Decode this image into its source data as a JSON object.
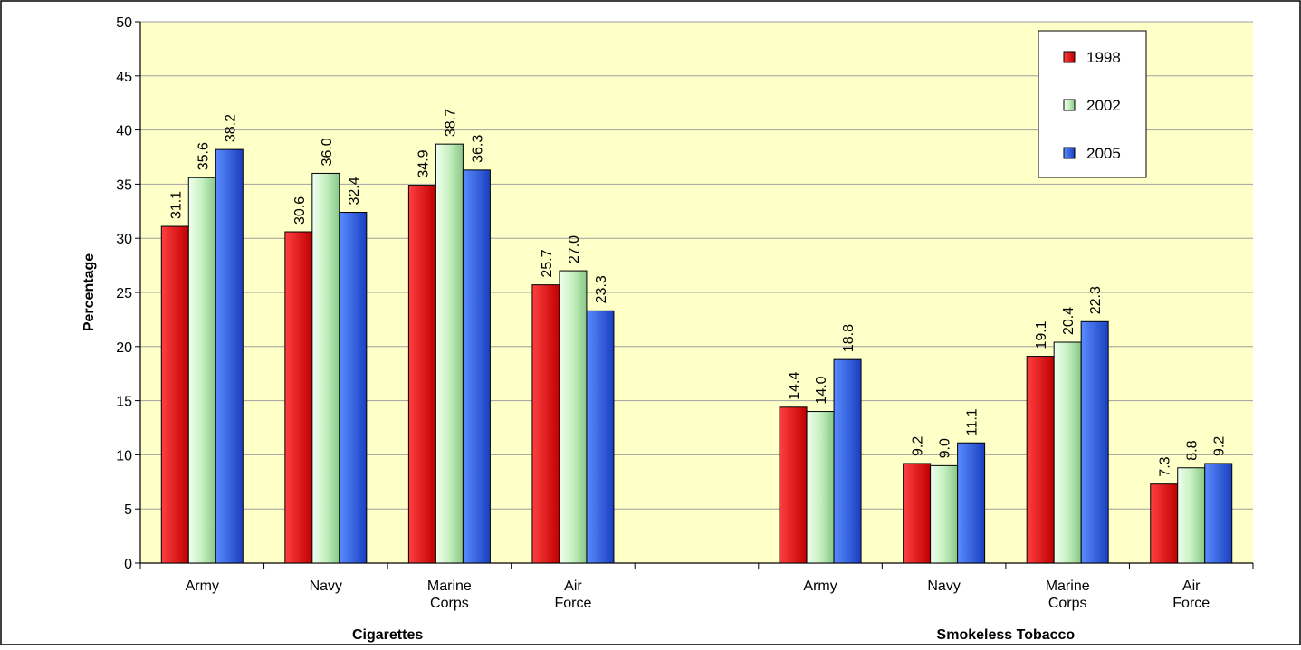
{
  "chart_data": {
    "type": "bar",
    "ylabel": "Percentage",
    "ylim": [
      0,
      50
    ],
    "yticks": [
      0,
      5,
      10,
      15,
      20,
      25,
      30,
      35,
      40,
      45,
      50
    ],
    "grid": true,
    "legend_position": "top-right",
    "groups": [
      {
        "label": "Cigarettes",
        "categories": [
          [
            "Army"
          ],
          [
            "Navy"
          ],
          [
            "Marine",
            "Corps"
          ],
          [
            "Air",
            "Force"
          ]
        ],
        "series": [
          {
            "name": "1998",
            "values": [
              31.1,
              30.6,
              34.9,
              25.7
            ]
          },
          {
            "name": "2002",
            "values": [
              35.6,
              36.0,
              38.7,
              27.0
            ]
          },
          {
            "name": "2005",
            "values": [
              38.2,
              32.4,
              36.3,
              23.3
            ]
          }
        ]
      },
      {
        "label": "Smokeless Tobacco",
        "categories": [
          [
            "Army"
          ],
          [
            "Navy"
          ],
          [
            "Marine",
            "Corps"
          ],
          [
            "Air",
            "Force"
          ]
        ],
        "series": [
          {
            "name": "1998",
            "values": [
              14.4,
              9.2,
              19.1,
              7.3
            ]
          },
          {
            "name": "2002",
            "values": [
              14.0,
              9.0,
              20.4,
              8.8
            ]
          },
          {
            "name": "2005",
            "values": [
              18.8,
              11.1,
              22.3,
              9.2
            ]
          }
        ]
      }
    ],
    "legend": [
      {
        "name": "1998",
        "color": "#e00000"
      },
      {
        "name": "2002",
        "color": "#c6f0c0"
      },
      {
        "name": "2005",
        "color": "#2f5fe0"
      }
    ],
    "colors": {
      "plot_background": "#ffffc8",
      "grid": "#a0a0a0",
      "axis": "#000000"
    }
  }
}
